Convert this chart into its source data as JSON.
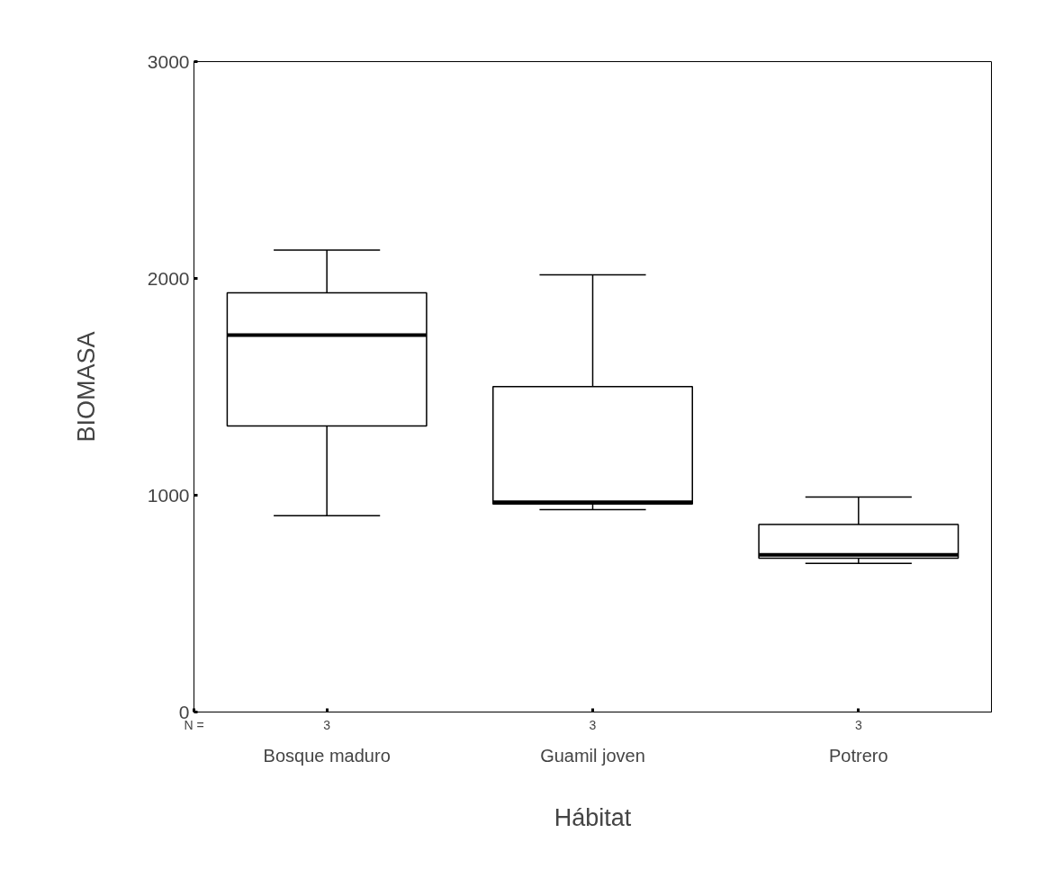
{
  "chart_data": {
    "type": "box",
    "xlabel": "Hábitat",
    "ylabel": "BIOMASA",
    "categories": [
      "Bosque maduro",
      "Guamil joven",
      "Potrero"
    ],
    "boxes": [
      {
        "low": 906,
        "q1": 1319,
        "median": 1739,
        "q3": 1934,
        "high": 2131
      },
      {
        "low": 934,
        "q1": 960,
        "median": 968,
        "q3": 1501,
        "high": 2017
      },
      {
        "low": 686,
        "q1": 710,
        "median": 725,
        "q3": 865,
        "high": 992
      }
    ],
    "ylim": [
      0,
      3000
    ],
    "yticks": [
      0,
      1000,
      2000,
      3000
    ],
    "grid": false,
    "annotations": [
      "N =",
      "3",
      "3",
      "3"
    ]
  }
}
